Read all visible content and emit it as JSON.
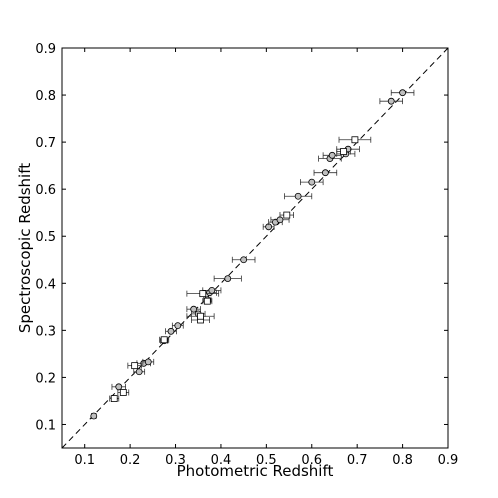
{
  "chart_data": {
    "type": "scatter",
    "x_label": "Photometric Redshift",
    "y_label": "Spectroscopic Redshift",
    "xlim": [
      0.05,
      0.9
    ],
    "ylim": [
      0.05,
      0.9
    ],
    "xticks": [
      0.1,
      0.2,
      0.3,
      0.4,
      0.5,
      0.6,
      0.7,
      0.8,
      0.9
    ],
    "yticks": [
      0.1,
      0.2,
      0.3,
      0.4,
      0.5,
      0.6,
      0.7,
      0.8,
      0.9
    ],
    "diagonal": true,
    "series": [
      {
        "marker": "circle",
        "color": "#bfbfbf",
        "x": [
          0.12,
          0.175,
          0.22,
          0.23,
          0.24,
          0.275,
          0.29,
          0.305,
          0.34,
          0.35,
          0.37,
          0.375,
          0.38,
          0.415,
          0.45,
          0.505,
          0.52,
          0.53,
          0.57,
          0.6,
          0.63,
          0.64,
          0.645,
          0.675,
          0.68,
          0.775,
          0.8
        ],
        "y": [
          0.118,
          0.18,
          0.212,
          0.23,
          0.233,
          0.278,
          0.298,
          0.31,
          0.345,
          0.335,
          0.365,
          0.38,
          0.385,
          0.41,
          0.45,
          0.52,
          0.53,
          0.535,
          0.585,
          0.615,
          0.635,
          0.665,
          0.672,
          0.675,
          0.685,
          0.787,
          0.805
        ],
        "xerr": [
          0.005,
          0.015,
          0.012,
          0.015,
          0.012,
          0.008,
          0.012,
          0.012,
          0.015,
          0.015,
          0.008,
          0.015,
          0.02,
          0.03,
          0.025,
          0.012,
          0.015,
          0.02,
          0.03,
          0.025,
          0.025,
          0.025,
          0.02,
          0.02,
          0.025,
          0.025,
          0.025
        ]
      },
      {
        "marker": "square",
        "color": "#ffffff",
        "x": [
          0.165,
          0.185,
          0.21,
          0.275,
          0.355,
          0.36,
          0.37,
          0.355,
          0.545,
          0.695,
          0.67
        ],
        "y": [
          0.155,
          0.168,
          0.225,
          0.28,
          0.322,
          0.378,
          0.362,
          0.33,
          0.545,
          0.705,
          0.68
        ],
        "xerr": [
          0.01,
          0.012,
          0.015,
          0.01,
          0.02,
          0.035,
          0.01,
          0.03,
          0.015,
          0.035,
          0.015
        ]
      }
    ]
  }
}
